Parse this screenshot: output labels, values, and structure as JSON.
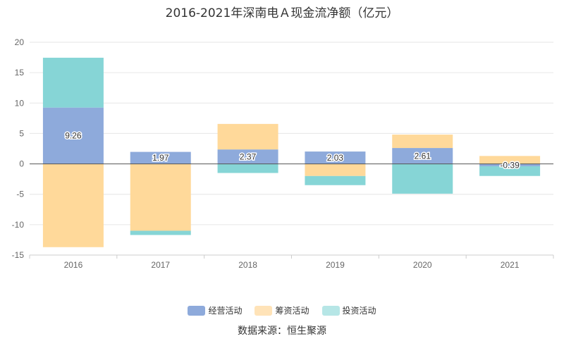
{
  "chart_data": {
    "type": "bar",
    "stacked": true,
    "title": "2016-2021年深南电Ａ现金流净额（亿元）",
    "categories": [
      "2016",
      "2017",
      "2018",
      "2019",
      "2020",
      "2021"
    ],
    "ylim": [
      -15,
      20
    ],
    "yticks": [
      20,
      15,
      10,
      5,
      0,
      -5,
      -10,
      -15
    ],
    "grid": true,
    "legend_position": "bottom",
    "series": [
      {
        "name": "经营活动",
        "color": "#8eaadb",
        "values": [
          9.26,
          1.97,
          2.37,
          2.03,
          2.61,
          -0.39
        ],
        "labels": [
          "9.26",
          "1.97",
          "2.37",
          "2.03",
          "2.61",
          "-0.39"
        ]
      },
      {
        "name": "筹资活动",
        "color": "#ffd99a",
        "values": [
          -13.7,
          -11.0,
          4.2,
          -2.0,
          2.2,
          1.3
        ]
      },
      {
        "name": "投资活动",
        "color": "#86d5d6",
        "values": [
          8.2,
          -0.7,
          -1.5,
          -1.5,
          -4.9,
          -1.6
        ]
      }
    ]
  },
  "legend": [
    {
      "name": "经营活动",
      "color": "#8eaadb"
    },
    {
      "name": "筹资活动",
      "color": "#ffe3b8"
    },
    {
      "name": "投资活动",
      "color": "#b6e6e6"
    }
  ],
  "source_note": "数据来源：恒生聚源"
}
